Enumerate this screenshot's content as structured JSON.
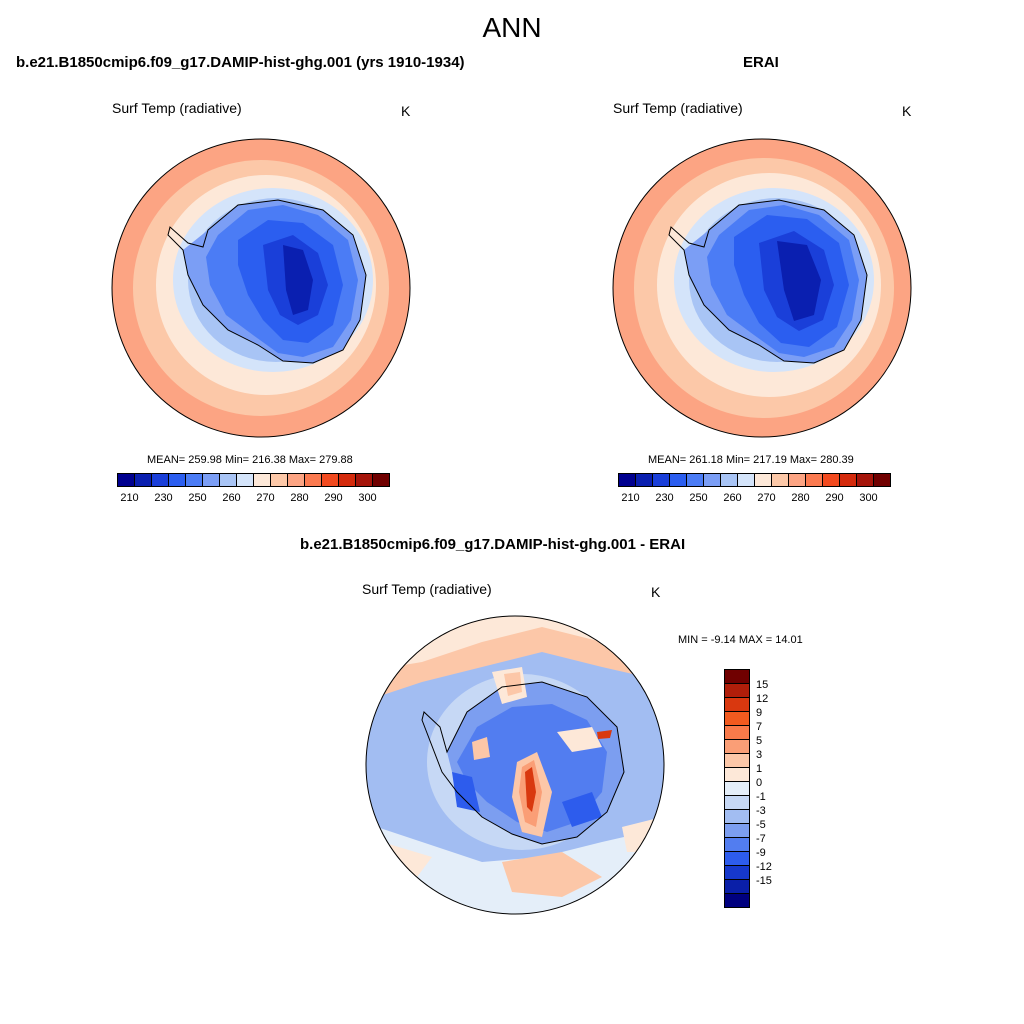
{
  "main_title": "ANN",
  "panels": [
    {
      "case": "b.e21.B1850cmip6.f09_g17.DAMIP-hist-ghg.001 (yrs 1910-1934)",
      "label": "Surf Temp (radiative)",
      "units": "K",
      "stats": "MEAN= 259.98  Min= 216.38  Max= 279.88"
    },
    {
      "case": "ERAI",
      "label": "Surf Temp (radiative)",
      "units": "K",
      "stats": "MEAN= 261.18  Min= 217.19  Max= 280.39"
    }
  ],
  "diff": {
    "case": "b.e21.B1850cmip6.f09_g17.DAMIP-hist-ghg.001 - ERAI",
    "label": "Surf Temp (radiative)",
    "units": "K",
    "stats": "MIN =  -9.14 MAX =  14.01"
  },
  "colorbar": {
    "colors": [
      "#00008f",
      "#0a1fb0",
      "#1a3fd9",
      "#2b5ef0",
      "#4b7cf5",
      "#7b9ef5",
      "#a8c4f5",
      "#d4e4fa",
      "#fde8d8",
      "#fcc8a8",
      "#fca483",
      "#fb7a50",
      "#f24a1f",
      "#d42a0c",
      "#a5140a",
      "#700000"
    ],
    "ticks": [
      "210",
      "230",
      "250",
      "260",
      "270",
      "280",
      "290",
      "300"
    ]
  },
  "diff_colorbar": {
    "colors": [
      "#700000",
      "#b01e0a",
      "#d9380f",
      "#f25a1f",
      "#f97a4a",
      "#fa9e76",
      "#fcc7a8",
      "#fde8d8",
      "#e4eef9",
      "#c6d8f5",
      "#a2bdf2",
      "#7c9ef0",
      "#527df0",
      "#2d5ced",
      "#1638cc",
      "#0a1fa8",
      "#00007f"
    ],
    "ticks": [
      "15",
      "12",
      "9",
      "7",
      "5",
      "3",
      "1",
      "0",
      "-1",
      "-3",
      "-5",
      "-7",
      "-9",
      "-12",
      "-15"
    ]
  }
}
